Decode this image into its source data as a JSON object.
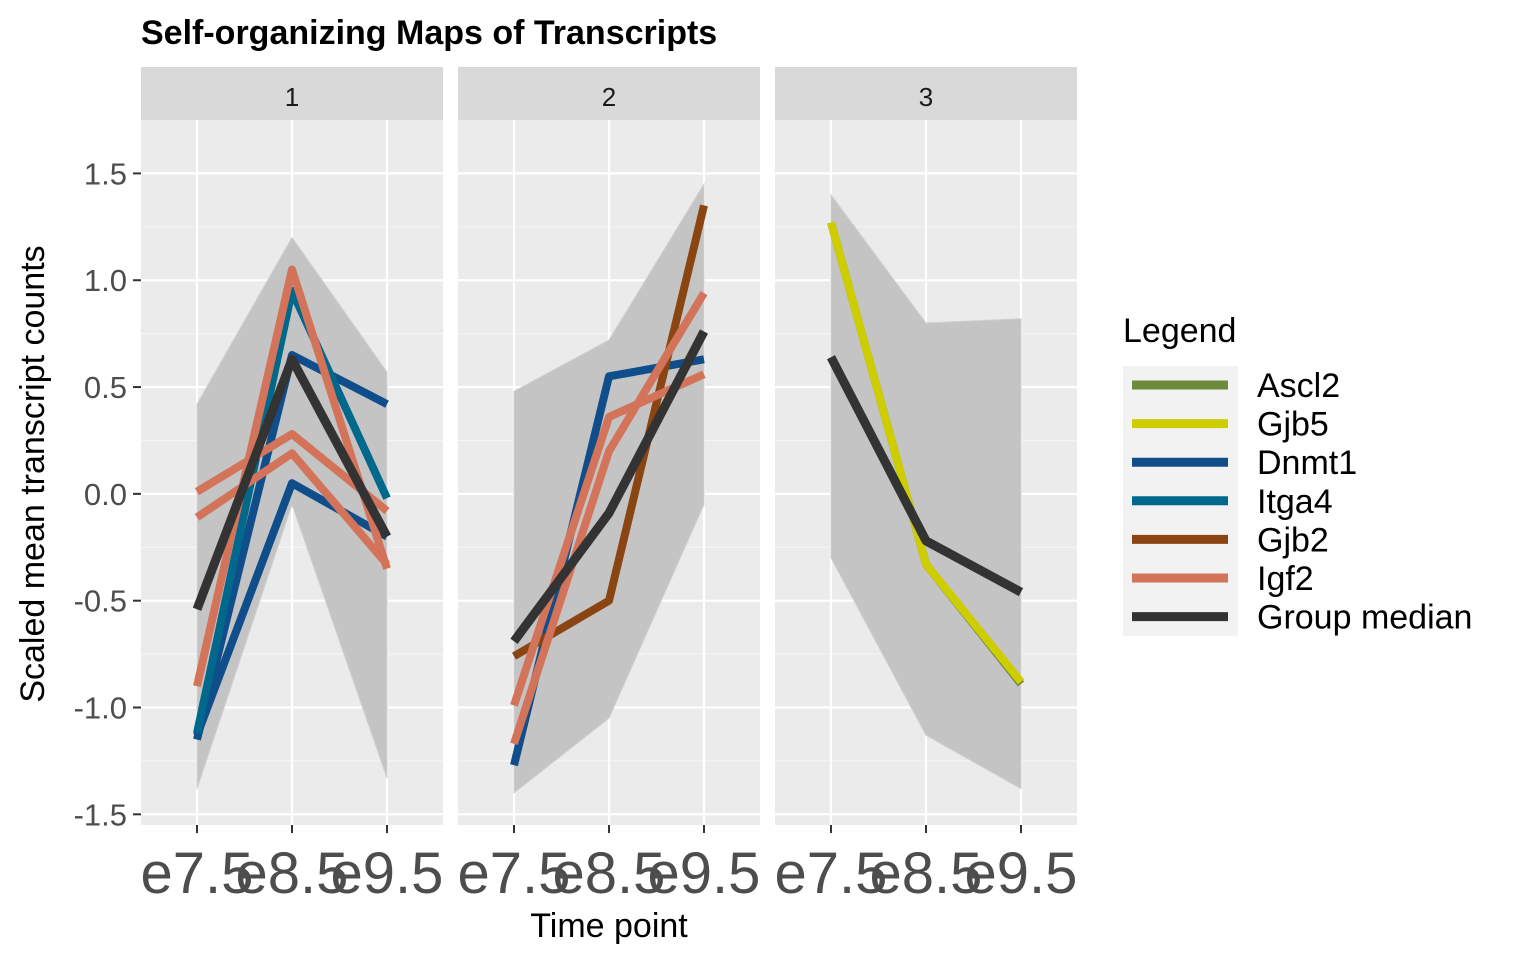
{
  "chart_data": {
    "type": "line",
    "title": "Self-organizing Maps of Transcripts",
    "xlabel": "Time point",
    "ylabel": "Scaled mean transcript counts",
    "x": [
      "e7.5",
      "e8.5",
      "e9.5"
    ],
    "ylim": [
      -1.55,
      1.75
    ],
    "yticks": [
      -1.5,
      -1.0,
      -0.5,
      0.0,
      0.5,
      1.0,
      1.5
    ],
    "ytick_labels": [
      "-1.5",
      "-1.0",
      "-0.5",
      "0.0",
      "0.5",
      "1.0",
      "1.5"
    ],
    "grid": true,
    "legend": {
      "title": "Legend",
      "placement": "right",
      "entries": [
        {
          "name": "Ascl2",
          "color": "#6E8B3D"
        },
        {
          "name": "Gjb5",
          "color": "#CDCD00"
        },
        {
          "name": "Dnmt1",
          "color": "#104E8B"
        },
        {
          "name": "Itga4",
          "color": "#00688B"
        },
        {
          "name": "Gjb2",
          "color": "#8B4513"
        },
        {
          "name": "Igf2",
          "color": "#D2735A"
        },
        {
          "name": "Group median",
          "color": "#333333"
        }
      ]
    },
    "panels": [
      {
        "label": "1",
        "band": {
          "lower": [
            -1.38,
            -0.05,
            -1.33
          ],
          "upper": [
            0.42,
            1.2,
            0.57
          ]
        },
        "series": [
          {
            "name": "Dnmt1",
            "values": [
              -1.15,
              0.65,
              0.42
            ]
          },
          {
            "name": "Dnmt1",
            "values": [
              -1.13,
              0.05,
              -0.2
            ]
          },
          {
            "name": "Itga4",
            "values": [
              -1.12,
              0.95,
              -0.02
            ]
          },
          {
            "name": "Igf2",
            "values": [
              -0.9,
              1.05,
              -0.35
            ]
          },
          {
            "name": "Igf2",
            "values": [
              0.01,
              0.28,
              -0.08
            ]
          },
          {
            "name": "Igf2",
            "values": [
              -0.11,
              0.19,
              -0.33
            ]
          },
          {
            "name": "Group median",
            "values": [
              -0.54,
              0.63,
              -0.2
            ]
          }
        ]
      },
      {
        "label": "2",
        "band": {
          "lower": [
            -1.4,
            -1.05,
            -0.05
          ],
          "upper": [
            0.48,
            0.72,
            1.45
          ]
        },
        "series": [
          {
            "name": "Dnmt1",
            "values": [
              -1.27,
              0.55,
              0.63
            ]
          },
          {
            "name": "Gjb2",
            "values": [
              -0.76,
              -0.5,
              1.35
            ]
          },
          {
            "name": "Igf2",
            "values": [
              -1.17,
              0.2,
              0.94
            ]
          },
          {
            "name": "Igf2",
            "values": [
              -0.99,
              0.36,
              0.56
            ]
          },
          {
            "name": "Group median",
            "values": [
              -0.69,
              -0.09,
              0.76
            ]
          }
        ]
      },
      {
        "label": "3",
        "band": {
          "lower": [
            -0.3,
            -1.13,
            -1.38
          ],
          "upper": [
            1.4,
            0.8,
            0.82
          ]
        },
        "series": [
          {
            "name": "Ascl2",
            "values": [
              1.27,
              -0.33,
              -0.89
            ]
          },
          {
            "name": "Gjb5",
            "values": [
              1.27,
              -0.33,
              -0.88
            ]
          },
          {
            "name": "Group median",
            "values": [
              0.64,
              -0.22,
              -0.46
            ]
          }
        ]
      }
    ]
  }
}
